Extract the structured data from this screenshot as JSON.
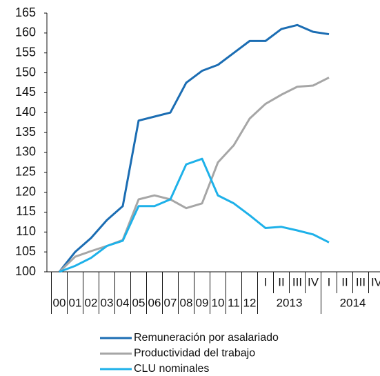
{
  "chart_data": {
    "type": "line",
    "categories": [
      "00",
      "01",
      "02",
      "03",
      "04",
      "05",
      "06",
      "07",
      "08",
      "09",
      "10",
      "11",
      "12",
      "I",
      "II",
      "III",
      "IV",
      "I",
      "II",
      "III",
      "IV"
    ],
    "groups": [
      {
        "label": "2013",
        "start": 13,
        "end": 16
      },
      {
        "label": "2014",
        "start": 17,
        "end": 20
      }
    ],
    "series": [
      {
        "name": "Remuneración por asalariado",
        "color": "#1b6db3",
        "values": [
          100,
          105,
          108.5,
          113,
          116.5,
          138,
          139,
          140,
          147.5,
          150.5,
          152,
          155,
          158,
          158,
          161,
          162,
          160.3,
          159.7,
          null,
          null,
          null
        ]
      },
      {
        "name": "Productividad del trabajo",
        "color": "#a6a6a6",
        "values": [
          100,
          103.8,
          105.2,
          106.5,
          108,
          118.2,
          119.2,
          118.2,
          116,
          117.2,
          127.5,
          131.8,
          138.5,
          142.2,
          144.5,
          146.5,
          146.8,
          148.8,
          null,
          null,
          null
        ]
      },
      {
        "name": "CLU nominales",
        "color": "#1eb1e9",
        "values": [
          100,
          101.5,
          103.5,
          106.5,
          107.8,
          116.5,
          116.5,
          118.2,
          127,
          128.4,
          119.2,
          117.2,
          114.2,
          111,
          111.3,
          110.4,
          109.4,
          107.4,
          null,
          null,
          null
        ]
      }
    ],
    "ylim": [
      100,
      165
    ],
    "yticks": [
      100,
      105,
      110,
      115,
      120,
      125,
      130,
      135,
      140,
      145,
      150,
      155,
      160,
      165
    ]
  }
}
